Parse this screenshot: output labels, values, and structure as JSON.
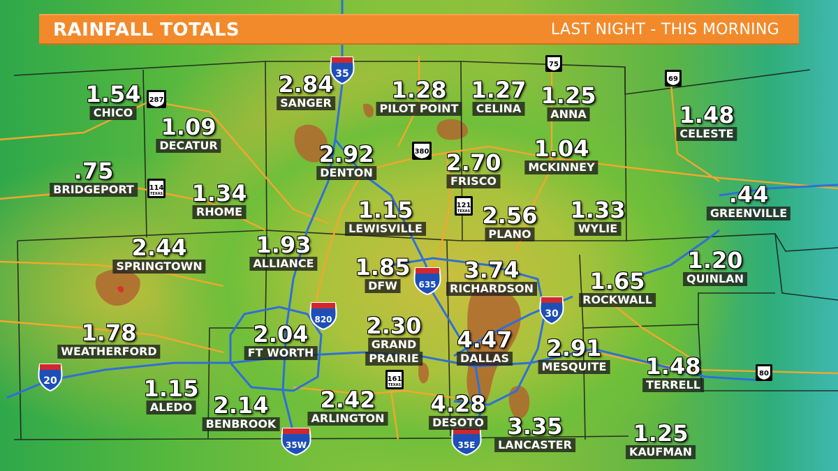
{
  "banner": {
    "title": "RAINFALL TOTALS",
    "subtitle": "LAST NIGHT - THIS MORNING",
    "color": "#f28a2b"
  },
  "cities": [
    {
      "value": "1.54",
      "name": "CHICO"
    },
    {
      "value": "1.09",
      "name": "DECATUR"
    },
    {
      "value": ".75",
      "name": "BRIDGEPORT"
    },
    {
      "value": "1.34",
      "name": "RHOME"
    },
    {
      "value": "2.84",
      "name": "SANGER"
    },
    {
      "value": "1.28",
      "name": "PILOT POINT"
    },
    {
      "value": "1.27",
      "name": "CELINA"
    },
    {
      "value": "1.25",
      "name": "ANNA"
    },
    {
      "value": "1.48",
      "name": "CELESTE"
    },
    {
      "value": "2.92",
      "name": "DENTON"
    },
    {
      "value": "2.70",
      "name": "FRISCO"
    },
    {
      "value": "1.04",
      "name": "MCKINNEY"
    },
    {
      "value": ".44",
      "name": "GREENVILLE"
    },
    {
      "value": "1.15",
      "name": "LEWISVILLE"
    },
    {
      "value": "2.56",
      "name": "PLANO"
    },
    {
      "value": "1.33",
      "name": "WYLIE"
    },
    {
      "value": "2.44",
      "name": "SPRINGTOWN"
    },
    {
      "value": "1.93",
      "name": "ALLIANCE"
    },
    {
      "value": "1.85",
      "name": "DFW"
    },
    {
      "value": "3.74",
      "name": "RICHARDSON"
    },
    {
      "value": "1.65",
      "name": "ROCKWALL"
    },
    {
      "value": "1.20",
      "name": "QUINLAN"
    },
    {
      "value": "1.78",
      "name": "WEATHERFORD"
    },
    {
      "value": "2.04",
      "name": "FT WORTH"
    },
    {
      "value": "2.30",
      "name": "GRAND",
      "name2": "PRAIRIE"
    },
    {
      "value": "4.47",
      "name": "DALLAS"
    },
    {
      "value": "2.91",
      "name": "MESQUITE"
    },
    {
      "value": "1.48",
      "name": "TERRELL"
    },
    {
      "value": "1.15",
      "name": "ALEDO"
    },
    {
      "value": "2.14",
      "name": "BENBROOK"
    },
    {
      "value": "2.42",
      "name": "ARLINGTON"
    },
    {
      "value": "4.28",
      "name": "DESOTO"
    },
    {
      "value": "3.35",
      "name": "LANCASTER"
    },
    {
      "value": "1.25",
      "name": "KAUFMAN"
    }
  ],
  "interstates": [
    {
      "number": "35",
      "top": "INTERSTATE"
    },
    {
      "number": "635",
      "top": "INTERSTATE"
    },
    {
      "number": "820",
      "top": "INTERSTATE"
    },
    {
      "number": "30",
      "top": "INTERSTATE"
    },
    {
      "number": "20",
      "top": "INTERSTATE"
    },
    {
      "number": "35W",
      "top": "INTERSTATE"
    },
    {
      "number": "35E",
      "top": "INTERSTATE"
    }
  ],
  "us_routes": [
    {
      "number": "287"
    },
    {
      "number": "75"
    },
    {
      "number": "69"
    },
    {
      "number": "380"
    },
    {
      "number": "80"
    }
  ],
  "state_routes": [
    {
      "number": "114",
      "state": "TEXAS"
    },
    {
      "number": "121",
      "state": "TEXAS"
    },
    {
      "number": "161",
      "state": "TEXAS"
    }
  ],
  "colors": {
    "interstate_line": "#2f6fd6",
    "highway_line": "#f2a72e",
    "county_line": "#1a1a1a",
    "heavy_rain": "#b5672e"
  }
}
